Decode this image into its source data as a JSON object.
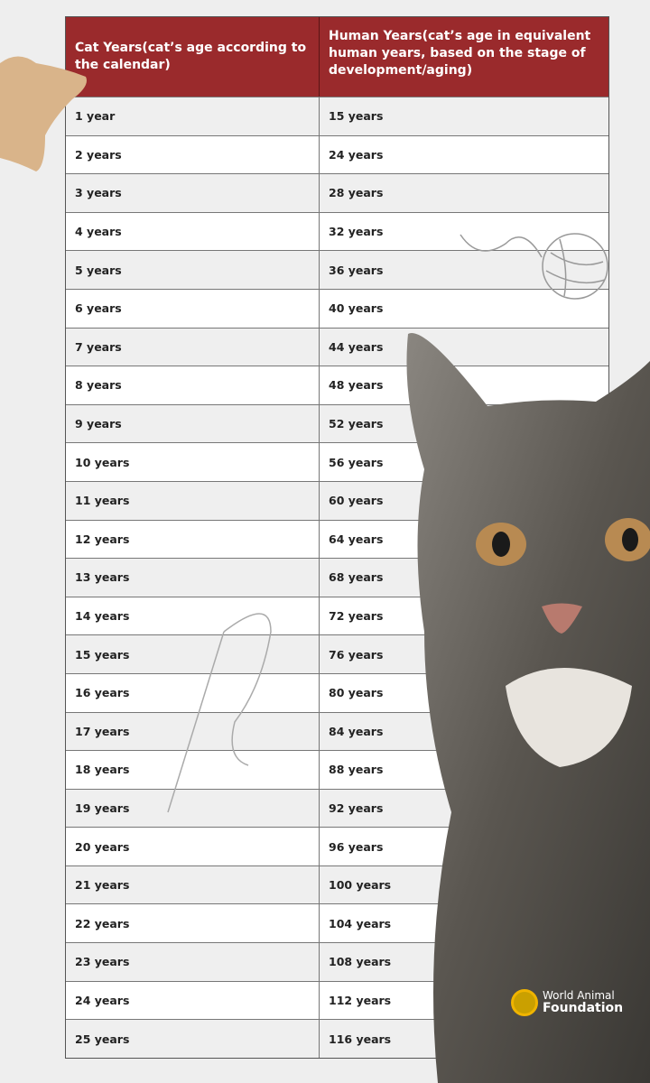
{
  "table": {
    "headers": [
      "Cat Years(cat’s age according to the calendar)",
      "Human Years(cat’s age in equivalent human years, based on the stage of development/aging)"
    ],
    "rows": [
      [
        "1 year",
        "15 years"
      ],
      [
        "2 years",
        "24 years"
      ],
      [
        "3  years",
        "28 years"
      ],
      [
        "4 years",
        "32 years"
      ],
      [
        "5 years",
        "36 years"
      ],
      [
        "6 years",
        "40 years"
      ],
      [
        "7 years",
        "44 years"
      ],
      [
        "8 years",
        "48 years"
      ],
      [
        "9 years",
        "52 years"
      ],
      [
        "10 years",
        "56 years"
      ],
      [
        "11 years",
        "60 years"
      ],
      [
        "12 years",
        "64 years"
      ],
      [
        "13 years",
        "68 years"
      ],
      [
        "14 years",
        "72 years"
      ],
      [
        "15 years",
        "76 years"
      ],
      [
        "16 years",
        "80 years"
      ],
      [
        "17 years",
        "84 years"
      ],
      [
        "18 years",
        "88 years"
      ],
      [
        "19 years",
        "92 years"
      ],
      [
        "20 years",
        "96 years"
      ],
      [
        "21 years",
        "100 years"
      ],
      [
        "22 years",
        "104  years"
      ],
      [
        "23  years",
        "108  years"
      ],
      [
        "24  years",
        "112  years"
      ],
      [
        "25 years",
        "116  years"
      ]
    ]
  },
  "logo": {
    "line1": "World Animal",
    "line2": "Foundation"
  },
  "colors": {
    "header": "#9a2a2c",
    "row_alt": "#efefef",
    "logo_accent": "#f0b400"
  }
}
